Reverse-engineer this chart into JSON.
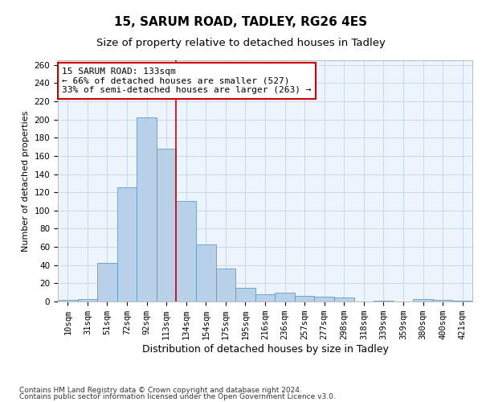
{
  "title1": "15, SARUM ROAD, TADLEY, RG26 4ES",
  "title2": "Size of property relative to detached houses in Tadley",
  "xlabel": "Distribution of detached houses by size in Tadley",
  "ylabel": "Number of detached properties",
  "categories": [
    "10sqm",
    "31sqm",
    "51sqm",
    "72sqm",
    "92sqm",
    "113sqm",
    "134sqm",
    "154sqm",
    "175sqm",
    "195sqm",
    "216sqm",
    "236sqm",
    "257sqm",
    "277sqm",
    "298sqm",
    "318sqm",
    "339sqm",
    "359sqm",
    "380sqm",
    "400sqm",
    "421sqm"
  ],
  "values": [
    2,
    3,
    42,
    125,
    202,
    168,
    110,
    63,
    36,
    15,
    8,
    10,
    6,
    5,
    4,
    0,
    1,
    0,
    3,
    2,
    1
  ],
  "bar_color": "#b8d0e8",
  "bar_edge_color": "#5a9ec8",
  "grid_color": "#c8d8ea",
  "background_color": "#eef4fb",
  "property_line_x": 5.5,
  "property_line_color": "#cc0000",
  "annotation_text": "15 SARUM ROAD: 133sqm\n← 66% of detached houses are smaller (527)\n33% of semi-detached houses are larger (263) →",
  "annotation_box_color": "#cc0000",
  "ylim": [
    0,
    265
  ],
  "yticks": [
    0,
    20,
    40,
    60,
    80,
    100,
    120,
    140,
    160,
    180,
    200,
    220,
    240,
    260
  ],
  "footer1": "Contains HM Land Registry data © Crown copyright and database right 2024.",
  "footer2": "Contains public sector information licensed under the Open Government Licence v3.0.",
  "title1_fontsize": 11,
  "title2_fontsize": 9.5,
  "xlabel_fontsize": 9,
  "ylabel_fontsize": 8,
  "tick_fontsize": 7.5,
  "annotation_fontsize": 8,
  "footer_fontsize": 6.5
}
